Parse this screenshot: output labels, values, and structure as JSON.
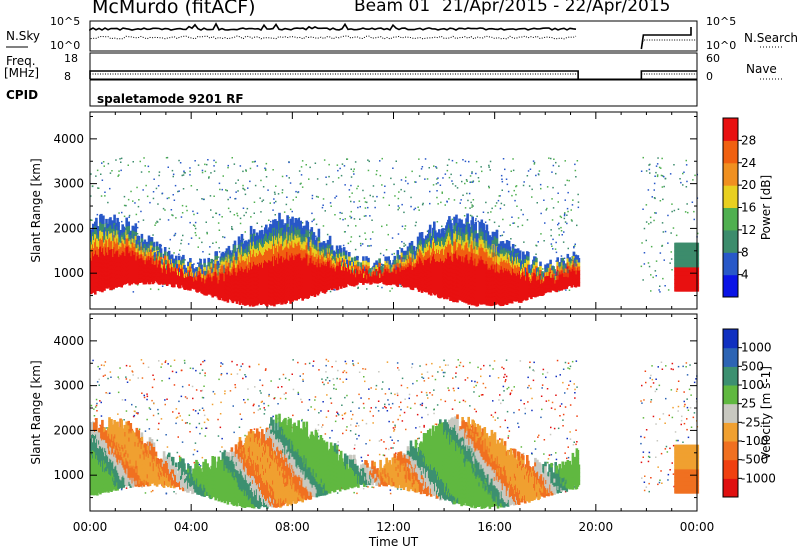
{
  "chart_data": {
    "type": "heatmap",
    "title": "McMurdo (fitACF)",
    "beam_label": "Beam 01",
    "date_range": "21/Apr/2015 - 22/Apr/2015",
    "mode_label": "spaletamode 9201 RF",
    "xlabel": "Time UT",
    "x_ticks": [
      "00:00",
      "04:00",
      "08:00",
      "12:00",
      "16:00",
      "20:00",
      "00:00"
    ],
    "x_range_hours": [
      0,
      24
    ],
    "data_gap_hours": [
      19.3,
      21.8
    ],
    "aux": {
      "nsky": {
        "label": "N.Sky",
        "ticks": [
          "10^5",
          "10^0"
        ]
      },
      "nsearch": {
        "label": "N.Search",
        "ticks": [
          "10^5",
          "10^0"
        ]
      },
      "freq": {
        "label": "Freq.",
        "unit": "[MHz]",
        "ticks": [
          "18",
          "8"
        ]
      },
      "nave": {
        "label": "Nave",
        "ticks": [
          "60",
          "0"
        ]
      },
      "cpid": {
        "label": "CPID"
      }
    },
    "panels": [
      {
        "name": "power",
        "ylabel": "Slant Range [km]",
        "y_ticks": [
          "1000",
          "2000",
          "3000",
          "4000"
        ],
        "ylim": [
          200,
          4600
        ],
        "colorbar": {
          "label": "Power [dB]",
          "ticks": [
            "4",
            "8",
            "12",
            "16",
            "20",
            "24",
            "28"
          ],
          "range": [
            0,
            32
          ],
          "colors": [
            "#0a14e6",
            "#2858c8",
            "#3c8c6c",
            "#50b050",
            "#e8d020",
            "#f09020",
            "#f06010",
            "#e81010"
          ]
        }
      },
      {
        "name": "velocity",
        "ylabel": "Slant Range [km]",
        "y_ticks": [
          "1000",
          "2000",
          "3000",
          "4000"
        ],
        "ylim": [
          200,
          4600
        ],
        "colorbar": {
          "label": "Velocity [m s-1]",
          "ticks": [
            "1000",
            "500",
            "100",
            "25",
            "-25",
            "-100",
            "-500",
            "-1000"
          ],
          "colors": [
            "#1030c0",
            "#2c64b4",
            "#3c9070",
            "#60b840",
            "#c8c8c0",
            "#f0a030",
            "#f07020",
            "#f04010",
            "#e01010"
          ]
        }
      }
    ]
  }
}
